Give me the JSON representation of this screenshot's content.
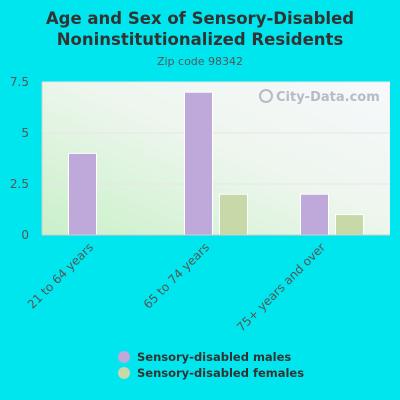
{
  "chart_data": {
    "type": "bar",
    "title_lines": [
      "Age and Sex of Sensory-Disabled",
      "Noninstitutionalized Residents"
    ],
    "subtitle": "Zip code 98342",
    "categories": [
      "21 to 64 years",
      "65 to 74 years",
      "75+ years and over"
    ],
    "series": [
      {
        "name": "Sensory-disabled males",
        "values": [
          4,
          7,
          2
        ],
        "color": "#bfa9db"
      },
      {
        "name": "Sensory-disabled females",
        "values": [
          0,
          2,
          1
        ],
        "color": "#c7d9a8"
      }
    ],
    "ylim": [
      0,
      7.5
    ],
    "yticks": [
      0,
      2.5,
      5,
      7.5
    ],
    "ytick_labels": [
      "0",
      "2.5",
      "5",
      "7.5"
    ],
    "grid": true,
    "legend": "bottom-center"
  },
  "watermark": "City-Data.com",
  "colors": {
    "background": "#00e6ee"
  }
}
